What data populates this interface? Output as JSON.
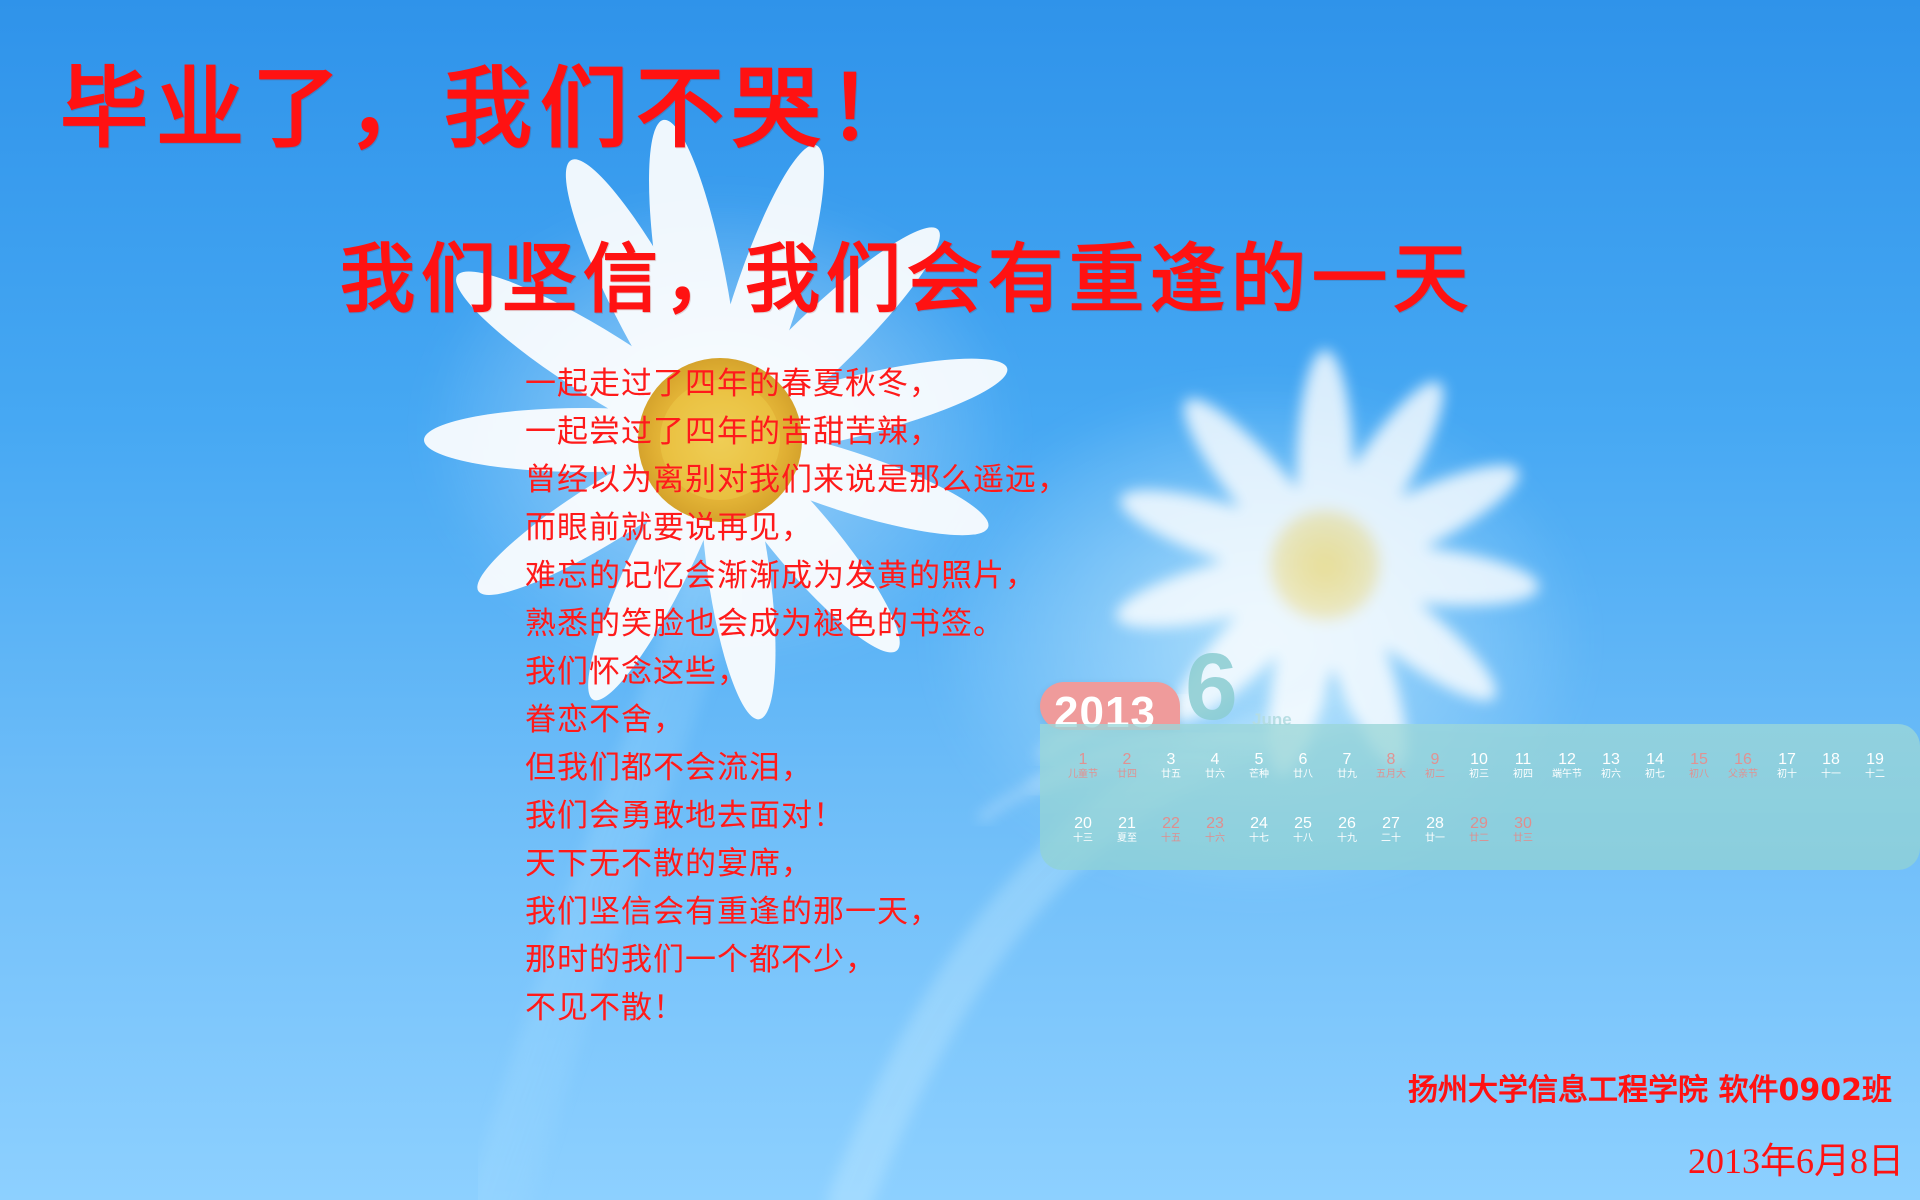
{
  "title": {
    "main": "毕业了，我们不哭！",
    "sub": "我们坚信，我们会有重逢的一天"
  },
  "poem": {
    "lines": [
      "一起走过了四年的春夏秋冬，",
      "一起尝过了四年的苦甜苦辣，",
      "曾经以为离别对我们来说是那么遥远，",
      "而眼前就要说再见，",
      "难忘的记忆会渐渐成为发黄的照片，",
      "熟悉的笑脸也会成为褪色的书签。",
      "我们怀念这些，",
      "眷恋不舍，",
      "但我们都不会流泪，",
      "我们会勇敢地去面对！",
      "天下无不散的宴席，",
      "我们坚信会有重逢的那一天，",
      "那时的我们一个都不少，",
      "不见不散！"
    ]
  },
  "calendar": {
    "year": "2013",
    "month_number": "6",
    "month_name": "June",
    "accent_color": "#ef9b9b",
    "panel_color": "#91d2d5",
    "days": [
      {
        "num": "1",
        "lunar": "儿童节",
        "weekend": true
      },
      {
        "num": "2",
        "lunar": "廿四",
        "weekend": true
      },
      {
        "num": "3",
        "lunar": "廿五",
        "weekend": false
      },
      {
        "num": "4",
        "lunar": "廿六",
        "weekend": false
      },
      {
        "num": "5",
        "lunar": "芒种",
        "weekend": false
      },
      {
        "num": "6",
        "lunar": "廿八",
        "weekend": false
      },
      {
        "num": "7",
        "lunar": "廿九",
        "weekend": false
      },
      {
        "num": "8",
        "lunar": "五月大",
        "weekend": true
      },
      {
        "num": "9",
        "lunar": "初二",
        "weekend": true
      },
      {
        "num": "10",
        "lunar": "初三",
        "weekend": false
      },
      {
        "num": "11",
        "lunar": "初四",
        "weekend": false
      },
      {
        "num": "12",
        "lunar": "端午节",
        "weekend": false
      },
      {
        "num": "13",
        "lunar": "初六",
        "weekend": false
      },
      {
        "num": "14",
        "lunar": "初七",
        "weekend": false
      },
      {
        "num": "15",
        "lunar": "初八",
        "weekend": true
      },
      {
        "num": "16",
        "lunar": "父亲节",
        "weekend": true
      },
      {
        "num": "17",
        "lunar": "初十",
        "weekend": false
      },
      {
        "num": "18",
        "lunar": "十一",
        "weekend": false
      },
      {
        "num": "19",
        "lunar": "十二",
        "weekend": false
      },
      {
        "num": "20",
        "lunar": "十三",
        "weekend": false
      },
      {
        "num": "21",
        "lunar": "夏至",
        "weekend": false
      },
      {
        "num": "22",
        "lunar": "十五",
        "weekend": true
      },
      {
        "num": "23",
        "lunar": "十六",
        "weekend": true
      },
      {
        "num": "24",
        "lunar": "十七",
        "weekend": false
      },
      {
        "num": "25",
        "lunar": "十八",
        "weekend": false
      },
      {
        "num": "26",
        "lunar": "十九",
        "weekend": false
      },
      {
        "num": "27",
        "lunar": "二十",
        "weekend": false
      },
      {
        "num": "28",
        "lunar": "廿一",
        "weekend": false
      },
      {
        "num": "29",
        "lunar": "廿二",
        "weekend": true
      },
      {
        "num": "30",
        "lunar": "廿三",
        "weekend": true
      }
    ]
  },
  "footer": {
    "signature": "扬州大学信息工程学院 软件0902班",
    "date": "2013年6月8日"
  },
  "colors": {
    "text_red": "#ff1212",
    "sky_top": "#2f93ea",
    "sky_bottom": "#8dd0ff",
    "flower_white": "#ffffff",
    "flower_center": "#f2c51b"
  }
}
